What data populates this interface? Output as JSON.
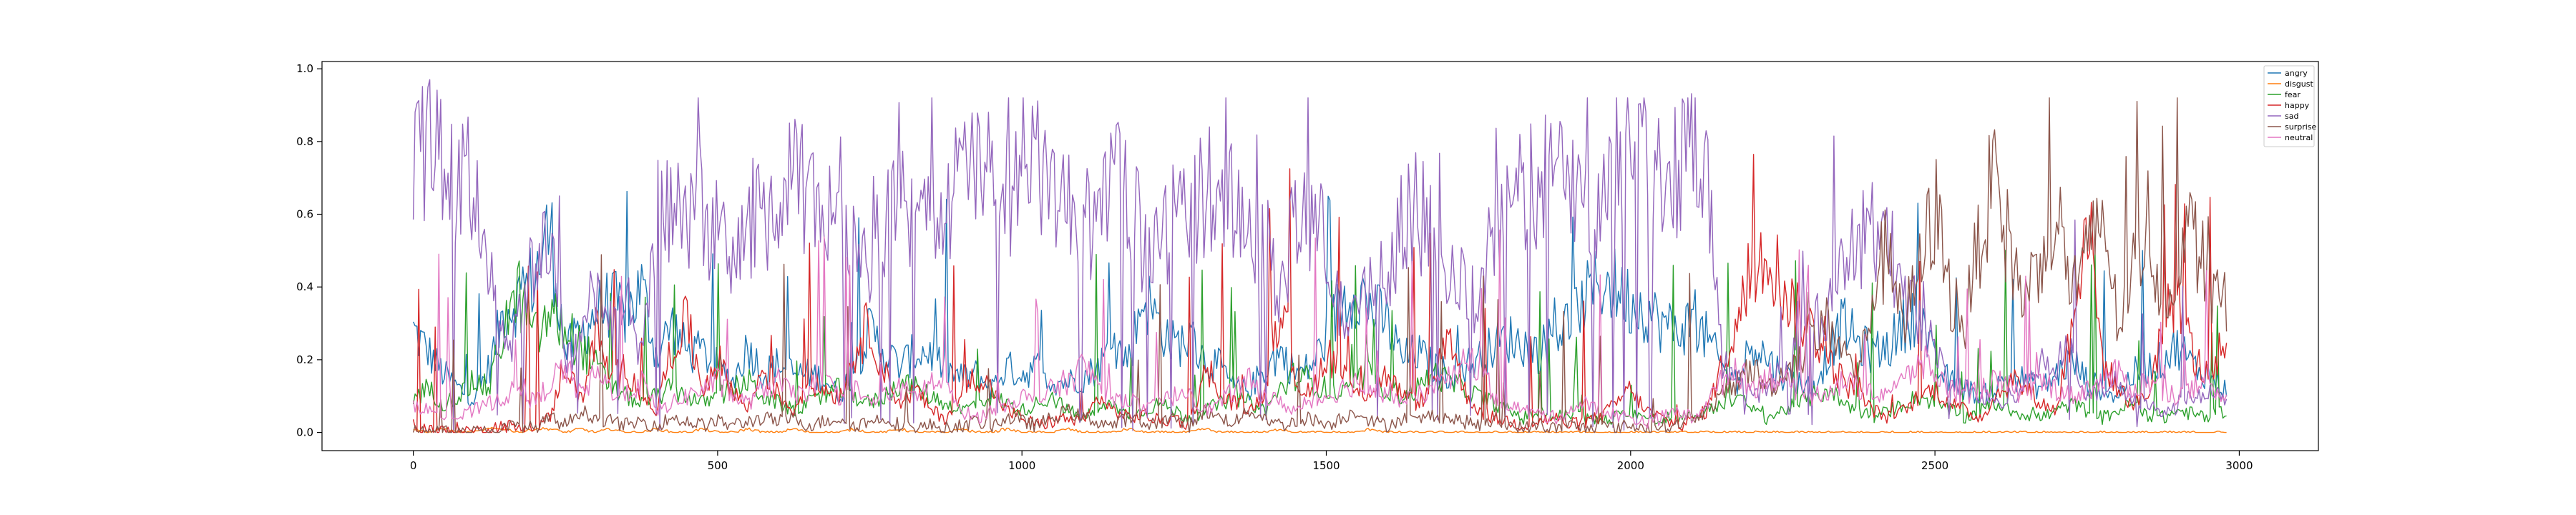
{
  "chart_data": {
    "type": "line",
    "title": "",
    "xlabel": "",
    "ylabel": "",
    "xlim": [
      -150,
      3130
    ],
    "ylim": [
      -0.05,
      1.02
    ],
    "x_ticks": [
      0,
      500,
      1000,
      1500,
      2000,
      2500,
      3000
    ],
    "x_tick_labels": [
      "0",
      "500",
      "1000",
      "1500",
      "2000",
      "2500",
      "3000"
    ],
    "y_ticks": [
      0.0,
      0.2,
      0.4,
      0.6,
      0.8,
      1.0
    ],
    "y_tick_labels": [
      "0.0",
      "0.2",
      "0.4",
      "0.6",
      "0.8",
      "1.0"
    ],
    "grid": false,
    "legend": "top-right",
    "n_frames": 3000,
    "x_step": 25,
    "series": [
      {
        "name": "angry",
        "color": "#1f77b4",
        "values": [
          0.28,
          0.22,
          0.16,
          0.12,
          0.09,
          0.18,
          0.34,
          0.37,
          0.43,
          0.56,
          0.22,
          0.27,
          0.33,
          0.36,
          0.32,
          0.4,
          0.21,
          0.3,
          0.22,
          0.22,
          0.18,
          0.14,
          0.24,
          0.16,
          0.19,
          0.16,
          0.16,
          0.15,
          0.1,
          0.18,
          0.28,
          0.22,
          0.18,
          0.22,
          0.22,
          0.17,
          0.15,
          0.16,
          0.12,
          0.18,
          0.16,
          0.18,
          0.14,
          0.14,
          0.15,
          0.18,
          0.24,
          0.2,
          0.38,
          0.3,
          0.24,
          0.26,
          0.2,
          0.18,
          0.12,
          0.12,
          0.18,
          0.22,
          0.16,
          0.18,
          0.26,
          0.36,
          0.4,
          0.34,
          0.3,
          0.2,
          0.22,
          0.18,
          0.16,
          0.18,
          0.2,
          0.24,
          0.26,
          0.24,
          0.22,
          0.28,
          0.3,
          0.36,
          0.42,
          0.4,
          0.36,
          0.34,
          0.3,
          0.28,
          0.3,
          0.26,
          0.18,
          0.12,
          0.26,
          0.2,
          0.16,
          0.14,
          0.12,
          0.22,
          0.3,
          0.24,
          0.22,
          0.24,
          0.3,
          0.34,
          0.18,
          0.14,
          0.12,
          0.1,
          0.12,
          0.16,
          0.14,
          0.12,
          0.16,
          0.2,
          0.14,
          0.12,
          0.1,
          0.16,
          0.18,
          0.2,
          0.24,
          0.18,
          0.16,
          0.12,
          0.16,
          0.18,
          0.14,
          0.1
        ]
      },
      {
        "name": "disgust",
        "color": "#ff7f0e",
        "values": [
          0.01,
          0.0,
          0.01,
          0.0,
          0.0,
          0.01,
          0.01,
          0.0,
          0.01,
          0.01,
          0.0,
          0.01,
          0.0,
          0.01,
          0.0,
          0.0,
          0.01,
          0.0,
          0.0,
          0.01,
          0.0,
          0.0,
          0.01,
          0.0,
          0.0,
          0.01,
          0.0,
          0.0,
          0.0,
          0.01,
          0.0,
          0.0,
          0.01,
          0.0,
          0.0,
          0.0,
          0.01,
          0.0,
          0.0,
          0.01,
          0.0,
          0.0,
          0.0,
          0.01,
          0.0,
          0.0,
          0.0,
          0.01,
          0.0,
          0.0,
          0.0,
          0.0,
          0.01,
          0.0,
          0.0,
          0.0,
          0.0,
          0.01,
          0.0,
          0.0,
          0.0,
          0.0,
          0.0,
          0.01,
          0.0,
          0.0,
          0.0,
          0.0,
          0.0,
          0.0,
          0.0,
          0.0,
          0.0,
          0.0,
          0.0,
          0.0,
          0.0,
          0.0,
          0.0,
          0.0,
          0.0,
          0.0,
          0.0,
          0.0,
          0.0,
          0.0,
          0.0,
          0.0,
          0.0,
          0.0,
          0.0,
          0.0,
          0.0,
          0.0,
          0.0,
          0.0,
          0.0,
          0.0,
          0.0,
          0.0,
          0.0,
          0.0,
          0.0,
          0.0,
          0.0,
          0.0,
          0.0,
          0.0,
          0.0,
          0.0,
          0.0,
          0.0,
          0.0,
          0.0,
          0.0,
          0.0,
          0.0,
          0.0,
          0.0,
          0.0,
          0.0,
          0.0,
          0.0,
          0.0
        ]
      },
      {
        "name": "fear",
        "color": "#2ca02c",
        "values": [
          0.1,
          0.12,
          0.08,
          0.1,
          0.14,
          0.12,
          0.3,
          0.38,
          0.26,
          0.32,
          0.28,
          0.24,
          0.18,
          0.12,
          0.1,
          0.08,
          0.1,
          0.12,
          0.1,
          0.08,
          0.1,
          0.12,
          0.14,
          0.1,
          0.08,
          0.06,
          0.08,
          0.1,
          0.12,
          0.1,
          0.08,
          0.1,
          0.14,
          0.12,
          0.1,
          0.08,
          0.06,
          0.08,
          0.1,
          0.08,
          0.06,
          0.08,
          0.1,
          0.06,
          0.04,
          0.06,
          0.08,
          0.04,
          0.06,
          0.08,
          0.06,
          0.04,
          0.06,
          0.08,
          0.1,
          0.08,
          0.06,
          0.12,
          0.16,
          0.14,
          0.12,
          0.1,
          0.14,
          0.16,
          0.12,
          0.1,
          0.12,
          0.16,
          0.14,
          0.12,
          0.1,
          0.08,
          0.06,
          0.04,
          0.06,
          0.04,
          0.05,
          0.04,
          0.03,
          0.04,
          0.06,
          0.04,
          0.03,
          0.05,
          0.04,
          0.06,
          0.08,
          0.1,
          0.06,
          0.04,
          0.06,
          0.08,
          0.1,
          0.12,
          0.08,
          0.06,
          0.04,
          0.06,
          0.08,
          0.1,
          0.08,
          0.06,
          0.04,
          0.06,
          0.08,
          0.06,
          0.05,
          0.04,
          0.06,
          0.08,
          0.06,
          0.04,
          0.06,
          0.08,
          0.05,
          0.04,
          0.06,
          0.05,
          0.04,
          0.06,
          0.08,
          0.06,
          0.05,
          0.04
        ]
      },
      {
        "name": "happy",
        "color": "#d62728",
        "values": [
          0.02,
          0.01,
          0.0,
          0.01,
          0.0,
          0.01,
          0.02,
          0.01,
          0.02,
          0.04,
          0.2,
          0.08,
          0.28,
          0.14,
          0.18,
          0.1,
          0.06,
          0.24,
          0.3,
          0.12,
          0.2,
          0.12,
          0.06,
          0.18,
          0.1,
          0.06,
          0.14,
          0.12,
          0.1,
          0.22,
          0.3,
          0.16,
          0.08,
          0.12,
          0.06,
          0.04,
          0.1,
          0.16,
          0.12,
          0.06,
          0.04,
          0.02,
          0.03,
          0.04,
          0.02,
          0.1,
          0.06,
          0.04,
          0.05,
          0.03,
          0.04,
          0.02,
          0.16,
          0.1,
          0.08,
          0.06,
          0.12,
          0.38,
          0.14,
          0.1,
          0.22,
          0.18,
          0.1,
          0.12,
          0.16,
          0.1,
          0.08,
          0.12,
          0.3,
          0.12,
          0.06,
          0.04,
          0.03,
          0.02,
          0.03,
          0.04,
          0.02,
          0.03,
          0.04,
          0.08,
          0.12,
          0.06,
          0.04,
          0.02,
          0.03,
          0.06,
          0.18,
          0.3,
          0.44,
          0.52,
          0.4,
          0.32,
          0.28,
          0.2,
          0.14,
          0.1,
          0.06,
          0.04,
          0.06,
          0.1,
          0.12,
          0.08,
          0.06,
          0.04,
          0.1,
          0.14,
          0.12,
          0.08,
          0.06,
          0.3,
          0.62,
          0.2,
          0.12,
          0.08,
          0.1,
          0.3,
          0.4,
          0.2,
          0.16,
          0.24,
          0.36,
          0.4,
          0.3,
          0.12
        ]
      },
      {
        "name": "sad",
        "color": "#9467bd",
        "values": [
          0.78,
          0.8,
          0.72,
          0.66,
          0.7,
          0.46,
          0.22,
          0.3,
          0.48,
          0.54,
          0.2,
          0.26,
          0.42,
          0.3,
          0.36,
          0.2,
          0.6,
          0.58,
          0.62,
          0.6,
          0.54,
          0.46,
          0.58,
          0.62,
          0.58,
          0.7,
          0.64,
          0.6,
          0.66,
          0.54,
          0.48,
          0.58,
          0.62,
          0.56,
          0.58,
          0.62,
          0.7,
          0.74,
          0.7,
          0.66,
          0.68,
          0.72,
          0.68,
          0.6,
          0.58,
          0.56,
          0.66,
          0.68,
          0.5,
          0.52,
          0.6,
          0.62,
          0.66,
          0.7,
          0.64,
          0.56,
          0.52,
          0.4,
          0.58,
          0.62,
          0.5,
          0.32,
          0.3,
          0.44,
          0.4,
          0.62,
          0.6,
          0.56,
          0.42,
          0.4,
          0.34,
          0.56,
          0.6,
          0.66,
          0.7,
          0.72,
          0.66,
          0.62,
          0.64,
          0.7,
          0.74,
          0.78,
          0.7,
          0.74,
          0.8,
          0.72,
          0.2,
          0.14,
          0.1,
          0.12,
          0.18,
          0.22,
          0.28,
          0.36,
          0.44,
          0.52,
          0.58,
          0.5,
          0.4,
          0.32,
          0.22,
          0.14,
          0.12,
          0.1,
          0.08,
          0.1,
          0.14,
          0.18,
          0.2,
          0.22,
          0.1,
          0.12,
          0.14,
          0.1,
          0.08,
          0.06,
          0.08,
          0.1,
          0.12,
          0.1,
          0.08,
          0.06,
          0.1,
          0.12
        ]
      },
      {
        "name": "surprise",
        "color": "#8c564b",
        "values": [
          0.0,
          0.0,
          0.0,
          0.0,
          0.0,
          0.0,
          0.01,
          0.02,
          0.01,
          0.04,
          0.02,
          0.06,
          0.04,
          0.03,
          0.02,
          0.03,
          0.02,
          0.04,
          0.03,
          0.02,
          0.03,
          0.02,
          0.03,
          0.04,
          0.03,
          0.04,
          0.02,
          0.03,
          0.04,
          0.02,
          0.03,
          0.04,
          0.02,
          0.01,
          0.02,
          0.01,
          0.02,
          0.03,
          0.02,
          0.04,
          0.03,
          0.02,
          0.04,
          0.06,
          0.04,
          0.03,
          0.02,
          0.04,
          0.02,
          0.03,
          0.04,
          0.02,
          0.06,
          0.04,
          0.03,
          0.06,
          0.04,
          0.02,
          0.03,
          0.04,
          0.02,
          0.04,
          0.06,
          0.03,
          0.02,
          0.04,
          0.03,
          0.05,
          0.04,
          0.03,
          0.02,
          0.03,
          0.02,
          0.01,
          0.02,
          0.01,
          0.02,
          0.01,
          0.02,
          0.01,
          0.02,
          0.01,
          0.02,
          0.02,
          0.04,
          0.06,
          0.1,
          0.14,
          0.18,
          0.12,
          0.16,
          0.2,
          0.26,
          0.3,
          0.22,
          0.16,
          0.4,
          0.52,
          0.3,
          0.44,
          0.62,
          0.38,
          0.3,
          0.56,
          0.7,
          0.48,
          0.36,
          0.52,
          0.6,
          0.4,
          0.46,
          0.62,
          0.3,
          0.44,
          0.58,
          0.36,
          0.48,
          0.56,
          0.4,
          0.34,
          0.5,
          0.6,
          0.7,
          0.58
        ]
      },
      {
        "name": "neutral",
        "color": "#e377c2",
        "values": [
          0.08,
          0.06,
          0.05,
          0.04,
          0.06,
          0.08,
          0.1,
          0.12,
          0.08,
          0.14,
          0.18,
          0.1,
          0.16,
          0.12,
          0.1,
          0.14,
          0.06,
          0.08,
          0.1,
          0.12,
          0.14,
          0.1,
          0.08,
          0.12,
          0.14,
          0.1,
          0.12,
          0.14,
          0.1,
          0.12,
          0.08,
          0.1,
          0.12,
          0.1,
          0.14,
          0.12,
          0.06,
          0.04,
          0.06,
          0.08,
          0.1,
          0.08,
          0.12,
          0.14,
          0.18,
          0.14,
          0.08,
          0.1,
          0.06,
          0.08,
          0.1,
          0.12,
          0.06,
          0.08,
          0.12,
          0.14,
          0.1,
          0.08,
          0.06,
          0.08,
          0.1,
          0.12,
          0.14,
          0.1,
          0.12,
          0.08,
          0.1,
          0.12,
          0.14,
          0.18,
          0.2,
          0.1,
          0.08,
          0.06,
          0.05,
          0.04,
          0.06,
          0.08,
          0.06,
          0.05,
          0.04,
          0.03,
          0.04,
          0.06,
          0.04,
          0.08,
          0.14,
          0.18,
          0.12,
          0.16,
          0.14,
          0.12,
          0.1,
          0.12,
          0.14,
          0.12,
          0.1,
          0.12,
          0.14,
          0.2,
          0.16,
          0.12,
          0.1,
          0.12,
          0.14,
          0.12,
          0.1,
          0.14,
          0.12,
          0.1,
          0.12,
          0.14,
          0.16,
          0.12,
          0.14,
          0.12,
          0.1,
          0.12,
          0.14,
          0.1,
          0.08,
          0.12,
          0.1,
          0.12
        ]
      }
    ]
  }
}
